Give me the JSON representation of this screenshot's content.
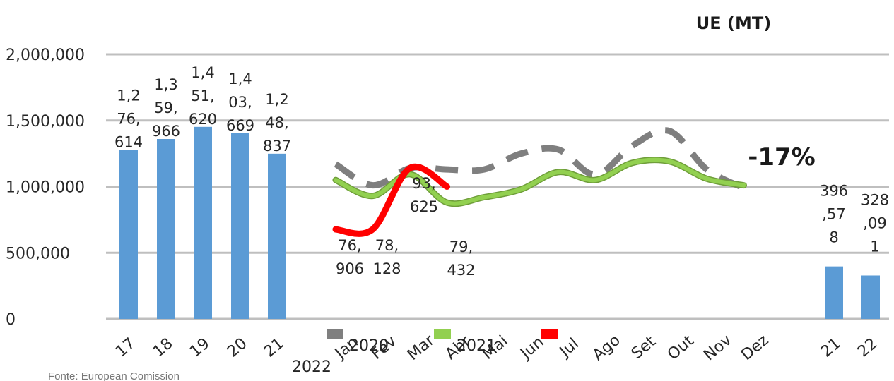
{
  "chart_data": {
    "type": "bar",
    "title": "UE (MT)",
    "callout": "-17%",
    "source": "Fonte: European Comission",
    "ylim": [
      0,
      2000000
    ],
    "yticks": [
      "0",
      "500,000",
      "1,000,000",
      "1,500,000",
      "2,000,000"
    ],
    "grid": true,
    "legend_position": "bottom",
    "annual_bars": {
      "categories": [
        "17",
        "18",
        "19",
        "20",
        "21"
      ],
      "values": [
        1276614,
        1359966,
        1451620,
        1403669,
        1248837
      ],
      "labels": [
        [
          "1,2",
          "76,",
          "614"
        ],
        [
          "1,3",
          "59,",
          "966"
        ],
        [
          "1,4",
          "51,",
          "620"
        ],
        [
          "1,4",
          "03,",
          "669"
        ],
        [
          "1,2",
          "48,",
          "837"
        ]
      ]
    },
    "year_to_date_bars": {
      "categories": [
        "21",
        "22"
      ],
      "values": [
        396578,
        328091
      ],
      "labels": [
        [
          "396",
          ",57",
          "8"
        ],
        [
          "328",
          ",09",
          "1"
        ]
      ]
    },
    "monthly_axis": {
      "lead_label": "2022",
      "months": [
        "Jan",
        "Fev",
        "Mar",
        "Abr",
        "Mai",
        "Jun",
        "Jul",
        "Ago",
        "Set",
        "Out",
        "Nov",
        "Dez"
      ]
    },
    "series": [
      {
        "name": "2020",
        "color": "#7f7f7f",
        "style": "dashed",
        "values": [
          1170000,
          1010000,
          1140000,
          1130000,
          1130000,
          1250000,
          1280000,
          1090000,
          1310000,
          1420000,
          1130000,
          990000
        ]
      },
      {
        "name": "2021",
        "color": "#92d050",
        "style": "solid",
        "values": [
          1050000,
          930000,
          1093625,
          879432,
          920000,
          980000,
          1110000,
          1050000,
          1180000,
          1190000,
          1060000,
          1010000
        ]
      },
      {
        "name": "2022",
        "color": "#ff0000",
        "style": "solid",
        "values": [
          676906,
          678128,
          1140000,
          1000000
        ]
      }
    ],
    "point_labels": [
      {
        "series": "2022",
        "month": "Jan",
        "lines": [
          "76,",
          "906"
        ]
      },
      {
        "series": "2022",
        "month": "Fev",
        "lines": [
          "78,",
          "128"
        ]
      },
      {
        "series": "2021",
        "month": "Mar",
        "lines": [
          "93,",
          "625"
        ]
      },
      {
        "series": "2021",
        "month": "Abr",
        "lines": [
          "79,",
          "432"
        ]
      }
    ]
  }
}
